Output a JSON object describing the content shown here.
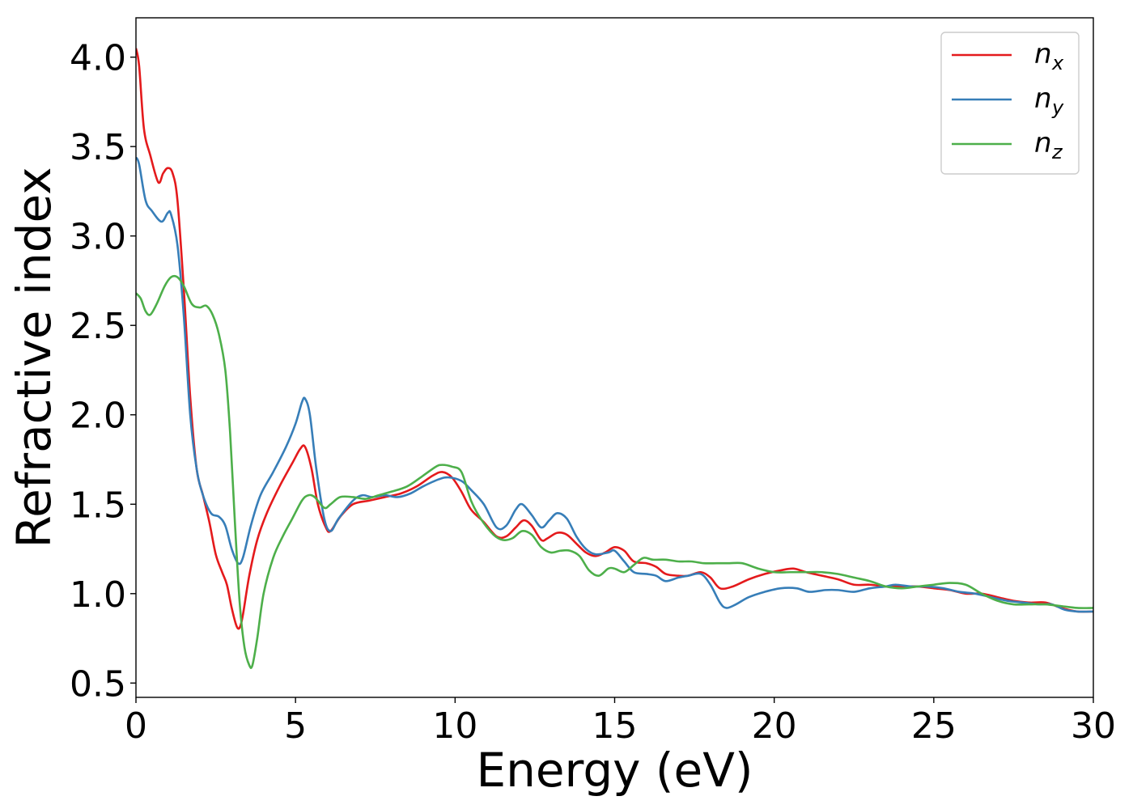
{
  "chart_data": {
    "type": "line",
    "xlabel": "Energy (eV)",
    "ylabel": "Refractive index",
    "xlim": [
      0,
      30
    ],
    "ylim": [
      0.42,
      4.22
    ],
    "x_ticks": [
      0,
      5,
      10,
      15,
      20,
      25,
      30
    ],
    "x_tick_labels": [
      "0",
      "5",
      "10",
      "15",
      "20",
      "25",
      "30"
    ],
    "y_ticks": [
      0.5,
      1.0,
      1.5,
      2.0,
      2.5,
      3.0,
      3.5,
      4.0
    ],
    "y_tick_labels": [
      "0.5",
      "1.0",
      "1.5",
      "2.0",
      "2.5",
      "3.0",
      "3.5",
      "4.0"
    ],
    "grid": false,
    "legend_position": "top-right",
    "series": [
      {
        "name": "n_x",
        "label_base": "n",
        "label_sub": "x",
        "color": "#e41a1c",
        "points": [
          [
            0,
            4.05
          ],
          [
            0.1,
            3.95
          ],
          [
            0.25,
            3.6
          ],
          [
            0.45,
            3.45
          ],
          [
            0.7,
            3.3
          ],
          [
            0.85,
            3.35
          ],
          [
            1.0,
            3.38
          ],
          [
            1.15,
            3.35
          ],
          [
            1.3,
            3.2
          ],
          [
            1.5,
            2.7
          ],
          [
            1.7,
            2.1
          ],
          [
            1.9,
            1.7
          ],
          [
            2.1,
            1.55
          ],
          [
            2.3,
            1.4
          ],
          [
            2.5,
            1.22
          ],
          [
            2.7,
            1.12
          ],
          [
            2.85,
            1.05
          ],
          [
            3.0,
            0.92
          ],
          [
            3.15,
            0.82
          ],
          [
            3.25,
            0.81
          ],
          [
            3.35,
            0.88
          ],
          [
            3.55,
            1.1
          ],
          [
            3.8,
            1.3
          ],
          [
            4.1,
            1.45
          ],
          [
            4.5,
            1.6
          ],
          [
            4.9,
            1.73
          ],
          [
            5.15,
            1.81
          ],
          [
            5.3,
            1.82
          ],
          [
            5.5,
            1.7
          ],
          [
            5.7,
            1.5
          ],
          [
            5.95,
            1.37
          ],
          [
            6.1,
            1.35
          ],
          [
            6.4,
            1.43
          ],
          [
            6.8,
            1.5
          ],
          [
            7.3,
            1.52
          ],
          [
            7.8,
            1.54
          ],
          [
            8.3,
            1.56
          ],
          [
            8.8,
            1.6
          ],
          [
            9.3,
            1.66
          ],
          [
            9.6,
            1.68
          ],
          [
            9.9,
            1.65
          ],
          [
            10.2,
            1.57
          ],
          [
            10.5,
            1.47
          ],
          [
            10.9,
            1.4
          ],
          [
            11.3,
            1.32
          ],
          [
            11.6,
            1.32
          ],
          [
            11.9,
            1.37
          ],
          [
            12.15,
            1.41
          ],
          [
            12.4,
            1.38
          ],
          [
            12.7,
            1.3
          ],
          [
            12.9,
            1.31
          ],
          [
            13.2,
            1.34
          ],
          [
            13.5,
            1.33
          ],
          [
            13.8,
            1.28
          ],
          [
            14.1,
            1.23
          ],
          [
            14.4,
            1.21
          ],
          [
            14.7,
            1.23
          ],
          [
            15.0,
            1.26
          ],
          [
            15.3,
            1.24
          ],
          [
            15.6,
            1.18
          ],
          [
            16.0,
            1.17
          ],
          [
            16.3,
            1.15
          ],
          [
            16.6,
            1.11
          ],
          [
            17.0,
            1.1
          ],
          [
            17.3,
            1.1
          ],
          [
            17.7,
            1.12
          ],
          [
            18.0,
            1.09
          ],
          [
            18.3,
            1.03
          ],
          [
            18.7,
            1.04
          ],
          [
            19.2,
            1.08
          ],
          [
            19.7,
            1.11
          ],
          [
            20.2,
            1.13
          ],
          [
            20.6,
            1.14
          ],
          [
            21.0,
            1.12
          ],
          [
            21.5,
            1.1
          ],
          [
            22.0,
            1.08
          ],
          [
            22.5,
            1.05
          ],
          [
            23.0,
            1.05
          ],
          [
            23.5,
            1.04
          ],
          [
            24.0,
            1.04
          ],
          [
            24.5,
            1.04
          ],
          [
            25.0,
            1.03
          ],
          [
            25.5,
            1.02
          ],
          [
            26.0,
            1.0
          ],
          [
            26.5,
            1.0
          ],
          [
            27.0,
            0.98
          ],
          [
            27.5,
            0.96
          ],
          [
            28.0,
            0.95
          ],
          [
            28.5,
            0.95
          ],
          [
            29.0,
            0.92
          ],
          [
            29.5,
            0.9
          ],
          [
            30.0,
            0.9
          ]
        ]
      },
      {
        "name": "n_y",
        "label_base": "n",
        "label_sub": "y",
        "color": "#377eb8",
        "points": [
          [
            0,
            3.44
          ],
          [
            0.1,
            3.4
          ],
          [
            0.3,
            3.2
          ],
          [
            0.5,
            3.14
          ],
          [
            0.8,
            3.08
          ],
          [
            1.0,
            3.13
          ],
          [
            1.1,
            3.12
          ],
          [
            1.3,
            2.95
          ],
          [
            1.5,
            2.55
          ],
          [
            1.7,
            2.0
          ],
          [
            1.9,
            1.7
          ],
          [
            2.1,
            1.55
          ],
          [
            2.35,
            1.45
          ],
          [
            2.6,
            1.43
          ],
          [
            2.8,
            1.38
          ],
          [
            3.0,
            1.25
          ],
          [
            3.2,
            1.17
          ],
          [
            3.35,
            1.2
          ],
          [
            3.6,
            1.38
          ],
          [
            3.9,
            1.55
          ],
          [
            4.3,
            1.68
          ],
          [
            4.7,
            1.82
          ],
          [
            5.0,
            1.95
          ],
          [
            5.2,
            2.07
          ],
          [
            5.3,
            2.09
          ],
          [
            5.45,
            2.0
          ],
          [
            5.65,
            1.7
          ],
          [
            5.9,
            1.42
          ],
          [
            6.1,
            1.35
          ],
          [
            6.35,
            1.42
          ],
          [
            6.8,
            1.52
          ],
          [
            7.1,
            1.55
          ],
          [
            7.4,
            1.54
          ],
          [
            7.8,
            1.55
          ],
          [
            8.2,
            1.54
          ],
          [
            8.6,
            1.56
          ],
          [
            9.0,
            1.6
          ],
          [
            9.5,
            1.64
          ],
          [
            9.8,
            1.65
          ],
          [
            10.2,
            1.63
          ],
          [
            10.5,
            1.58
          ],
          [
            10.9,
            1.5
          ],
          [
            11.3,
            1.37
          ],
          [
            11.6,
            1.38
          ],
          [
            11.9,
            1.47
          ],
          [
            12.1,
            1.5
          ],
          [
            12.4,
            1.44
          ],
          [
            12.7,
            1.37
          ],
          [
            12.95,
            1.41
          ],
          [
            13.2,
            1.45
          ],
          [
            13.5,
            1.42
          ],
          [
            13.8,
            1.32
          ],
          [
            14.1,
            1.25
          ],
          [
            14.4,
            1.22
          ],
          [
            14.8,
            1.23
          ],
          [
            15.0,
            1.24
          ],
          [
            15.3,
            1.18
          ],
          [
            15.6,
            1.12
          ],
          [
            16.0,
            1.11
          ],
          [
            16.3,
            1.1
          ],
          [
            16.6,
            1.07
          ],
          [
            17.0,
            1.09
          ],
          [
            17.3,
            1.1
          ],
          [
            17.7,
            1.11
          ],
          [
            18.0,
            1.05
          ],
          [
            18.3,
            0.95
          ],
          [
            18.5,
            0.92
          ],
          [
            18.8,
            0.94
          ],
          [
            19.2,
            0.98
          ],
          [
            19.7,
            1.01
          ],
          [
            20.2,
            1.03
          ],
          [
            20.7,
            1.03
          ],
          [
            21.1,
            1.01
          ],
          [
            21.6,
            1.02
          ],
          [
            22.0,
            1.02
          ],
          [
            22.5,
            1.01
          ],
          [
            23.0,
            1.03
          ],
          [
            23.5,
            1.04
          ],
          [
            23.8,
            1.05
          ],
          [
            24.3,
            1.04
          ],
          [
            24.8,
            1.04
          ],
          [
            25.3,
            1.03
          ],
          [
            25.8,
            1.01
          ],
          [
            26.3,
            1.0
          ],
          [
            26.8,
            0.98
          ],
          [
            27.3,
            0.96
          ],
          [
            27.8,
            0.95
          ],
          [
            28.3,
            0.94
          ],
          [
            28.7,
            0.94
          ],
          [
            29.1,
            0.91
          ],
          [
            29.5,
            0.9
          ],
          [
            30.0,
            0.9
          ]
        ]
      },
      {
        "name": "n_z",
        "label_base": "n",
        "label_sub": "z",
        "color": "#4daf4a",
        "points": [
          [
            0,
            2.68
          ],
          [
            0.15,
            2.65
          ],
          [
            0.3,
            2.58
          ],
          [
            0.45,
            2.56
          ],
          [
            0.65,
            2.62
          ],
          [
            0.9,
            2.72
          ],
          [
            1.1,
            2.77
          ],
          [
            1.3,
            2.77
          ],
          [
            1.5,
            2.72
          ],
          [
            1.75,
            2.62
          ],
          [
            2.0,
            2.6
          ],
          [
            2.2,
            2.61
          ],
          [
            2.4,
            2.56
          ],
          [
            2.6,
            2.45
          ],
          [
            2.8,
            2.25
          ],
          [
            2.95,
            1.9
          ],
          [
            3.1,
            1.4
          ],
          [
            3.25,
            0.95
          ],
          [
            3.4,
            0.7
          ],
          [
            3.55,
            0.6
          ],
          [
            3.65,
            0.6
          ],
          [
            3.8,
            0.75
          ],
          [
            4.0,
            1.0
          ],
          [
            4.3,
            1.2
          ],
          [
            4.6,
            1.32
          ],
          [
            4.9,
            1.42
          ],
          [
            5.2,
            1.52
          ],
          [
            5.4,
            1.55
          ],
          [
            5.6,
            1.54
          ],
          [
            5.9,
            1.48
          ],
          [
            6.1,
            1.5
          ],
          [
            6.4,
            1.54
          ],
          [
            6.8,
            1.54
          ],
          [
            7.2,
            1.53
          ],
          [
            7.6,
            1.55
          ],
          [
            8.0,
            1.57
          ],
          [
            8.5,
            1.6
          ],
          [
            9.0,
            1.66
          ],
          [
            9.4,
            1.71
          ],
          [
            9.6,
            1.72
          ],
          [
            9.9,
            1.71
          ],
          [
            10.2,
            1.68
          ],
          [
            10.5,
            1.52
          ],
          [
            10.8,
            1.42
          ],
          [
            11.2,
            1.33
          ],
          [
            11.5,
            1.3
          ],
          [
            11.8,
            1.31
          ],
          [
            12.1,
            1.35
          ],
          [
            12.4,
            1.33
          ],
          [
            12.7,
            1.26
          ],
          [
            13.0,
            1.23
          ],
          [
            13.3,
            1.24
          ],
          [
            13.6,
            1.24
          ],
          [
            13.9,
            1.21
          ],
          [
            14.2,
            1.13
          ],
          [
            14.5,
            1.1
          ],
          [
            14.8,
            1.14
          ],
          [
            15.0,
            1.14
          ],
          [
            15.3,
            1.12
          ],
          [
            15.6,
            1.16
          ],
          [
            15.9,
            1.2
          ],
          [
            16.2,
            1.19
          ],
          [
            16.6,
            1.19
          ],
          [
            17.0,
            1.18
          ],
          [
            17.4,
            1.18
          ],
          [
            17.8,
            1.17
          ],
          [
            18.2,
            1.17
          ],
          [
            18.6,
            1.17
          ],
          [
            19.0,
            1.17
          ],
          [
            19.5,
            1.14
          ],
          [
            20.0,
            1.12
          ],
          [
            20.5,
            1.12
          ],
          [
            21.0,
            1.12
          ],
          [
            21.5,
            1.12
          ],
          [
            22.0,
            1.11
          ],
          [
            22.5,
            1.09
          ],
          [
            23.0,
            1.07
          ],
          [
            23.5,
            1.04
          ],
          [
            24.0,
            1.03
          ],
          [
            24.5,
            1.04
          ],
          [
            25.0,
            1.05
          ],
          [
            25.5,
            1.06
          ],
          [
            26.0,
            1.05
          ],
          [
            26.5,
            1.0
          ],
          [
            27.0,
            0.96
          ],
          [
            27.5,
            0.94
          ],
          [
            28.0,
            0.94
          ],
          [
            28.5,
            0.94
          ],
          [
            29.0,
            0.93
          ],
          [
            29.5,
            0.92
          ],
          [
            30.0,
            0.92
          ]
        ]
      }
    ]
  }
}
